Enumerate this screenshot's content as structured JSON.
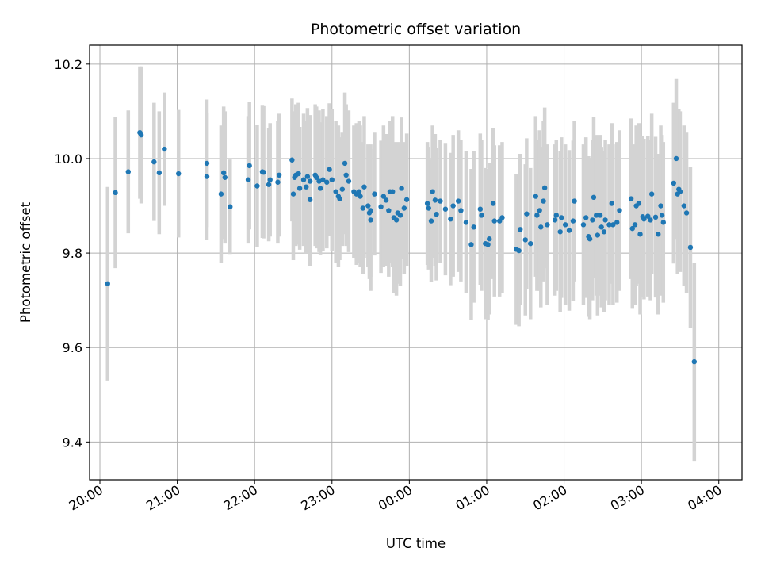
{
  "chart_data": {
    "type": "scatter",
    "title": "Photometric offset variation",
    "xlabel": "UTC time",
    "ylabel": "Photometric offset",
    "x_ticks": [
      "20:00",
      "21:00",
      "22:00",
      "23:00",
      "00:00",
      "01:00",
      "02:00",
      "03:00",
      "04:00"
    ],
    "y_ticks": [
      "9.4",
      "9.6",
      "9.8",
      "10.0",
      "10.2"
    ],
    "xlim": [
      "19:52",
      "04:18"
    ],
    "ylim": [
      9.32,
      10.24
    ],
    "grid": true,
    "colors": {
      "points": "#1f77b4",
      "errorbars": "#d3d3d3",
      "grid": "#b0b0b0"
    },
    "series": [
      {
        "points": [
          [
            "20:06",
            9.735,
            0.205
          ],
          [
            "20:12",
            9.928,
            0.16
          ],
          [
            "20:22",
            9.972,
            0.13
          ],
          [
            "20:31",
            10.055,
            0.14
          ],
          [
            "20:32",
            10.05,
            0.145
          ],
          [
            "20:42",
            9.993,
            0.125
          ],
          [
            "20:46",
            9.97,
            0.13
          ],
          [
            "20:50",
            10.02,
            0.12
          ],
          [
            "21:01",
            9.968,
            0.135
          ],
          [
            "21:23",
            9.99,
            0.135
          ],
          [
            "21:23",
            9.962,
            0.135
          ],
          [
            "21:34",
            9.925,
            0.145
          ],
          [
            "21:36",
            9.97,
            0.14
          ],
          [
            "21:37",
            9.96,
            0.14
          ],
          [
            "21:41",
            9.898,
            0.1
          ],
          [
            "21:55",
            9.955,
            0.135
          ],
          [
            "21:56",
            9.985,
            0.135
          ],
          [
            "22:02",
            9.942,
            0.13
          ],
          [
            "22:06",
            9.972,
            0.14
          ],
          [
            "22:07",
            9.971,
            0.14
          ],
          [
            "22:11",
            9.945,
            0.12
          ],
          [
            "22:12",
            9.955,
            0.12
          ],
          [
            "22:18",
            9.95,
            0.13
          ],
          [
            "22:19",
            9.965,
            0.13
          ],
          [
            "22:29",
            9.997,
            0.13
          ],
          [
            "22:30",
            9.925,
            0.14
          ],
          [
            "22:31",
            9.96,
            0.14
          ],
          [
            "22:32",
            9.965,
            0.15
          ],
          [
            "22:34",
            9.968,
            0.15
          ],
          [
            "22:35",
            9.937,
            0.13
          ],
          [
            "22:38",
            9.955,
            0.14
          ],
          [
            "22:40",
            9.94,
            0.14
          ],
          [
            "22:41",
            9.962,
            0.145
          ],
          [
            "22:43",
            9.913,
            0.14
          ],
          [
            "22:43",
            9.952,
            0.14
          ],
          [
            "22:47",
            9.965,
            0.15
          ],
          [
            "22:48",
            9.96,
            0.15
          ],
          [
            "22:50",
            9.952,
            0.15
          ],
          [
            "22:51",
            9.937,
            0.14
          ],
          [
            "22:53",
            9.955,
            0.15
          ],
          [
            "22:56",
            9.95,
            0.14
          ],
          [
            "22:58",
            9.977,
            0.14
          ],
          [
            "23:00",
            9.955,
            0.15
          ],
          [
            "23:03",
            9.93,
            0.15
          ],
          [
            "23:05",
            9.92,
            0.15
          ],
          [
            "23:06",
            9.915,
            0.13
          ],
          [
            "23:08",
            9.935,
            0.12
          ],
          [
            "23:10",
            9.99,
            0.15
          ],
          [
            "23:11",
            9.965,
            0.15
          ],
          [
            "23:13",
            9.952,
            0.15
          ],
          [
            "23:17",
            9.93,
            0.14
          ],
          [
            "23:19",
            9.925,
            0.15
          ],
          [
            "23:21",
            9.93,
            0.15
          ],
          [
            "23:22",
            9.92,
            0.15
          ],
          [
            "23:24",
            9.895,
            0.14
          ],
          [
            "23:25",
            9.94,
            0.15
          ],
          [
            "23:28",
            9.9,
            0.13
          ],
          [
            "23:29",
            9.885,
            0.14
          ],
          [
            "23:30",
            9.87,
            0.15
          ],
          [
            "23:30",
            9.89,
            0.14
          ],
          [
            "23:33",
            9.925,
            0.13
          ],
          [
            "23:38",
            9.898,
            0.14
          ],
          [
            "23:40",
            9.92,
            0.15
          ],
          [
            "23:42",
            9.912,
            0.14
          ],
          [
            "23:44",
            9.89,
            0.14
          ],
          [
            "23:45",
            9.93,
            0.15
          ],
          [
            "23:47",
            9.93,
            0.16
          ],
          [
            "23:48",
            9.875,
            0.16
          ],
          [
            "23:50",
            9.87,
            0.16
          ],
          [
            "23:51",
            9.885,
            0.15
          ],
          [
            "23:53",
            9.88,
            0.15
          ],
          [
            "23:54",
            9.937,
            0.15
          ],
          [
            "23:56",
            9.895,
            0.14
          ],
          [
            "23:58",
            9.913,
            0.14
          ],
          [
            "00:14",
            9.905,
            0.13
          ],
          [
            "00:15",
            9.895,
            0.13
          ],
          [
            "00:17",
            9.868,
            0.13
          ],
          [
            "00:18",
            9.93,
            0.14
          ],
          [
            "00:20",
            9.912,
            0.14
          ],
          [
            "00:21",
            9.882,
            0.14
          ],
          [
            "00:24",
            9.91,
            0.13
          ],
          [
            "00:28",
            9.893,
            0.14
          ],
          [
            "00:32",
            9.872,
            0.14
          ],
          [
            "00:34",
            9.9,
            0.15
          ],
          [
            "00:38",
            9.91,
            0.15
          ],
          [
            "00:40",
            9.89,
            0.15
          ],
          [
            "00:44",
            9.865,
            0.15
          ],
          [
            "00:48",
            9.818,
            0.16
          ],
          [
            "00:50",
            9.855,
            0.16
          ],
          [
            "00:55",
            9.893,
            0.16
          ],
          [
            "00:56",
            9.88,
            0.16
          ],
          [
            "00:59",
            9.82,
            0.16
          ],
          [
            "01:01",
            9.818,
            0.16
          ],
          [
            "01:02",
            9.83,
            0.16
          ],
          [
            "01:05",
            9.905,
            0.16
          ],
          [
            "01:06",
            9.868,
            0.16
          ],
          [
            "01:10",
            9.868,
            0.16
          ],
          [
            "01:12",
            9.875,
            0.16
          ],
          [
            "01:23",
            9.808,
            0.16
          ],
          [
            "01:25",
            9.805,
            0.16
          ],
          [
            "01:26",
            9.85,
            0.16
          ],
          [
            "01:30",
            9.828,
            0.16
          ],
          [
            "01:31",
            9.883,
            0.16
          ],
          [
            "01:34",
            9.82,
            0.16
          ],
          [
            "01:38",
            9.92,
            0.17
          ],
          [
            "01:39",
            9.88,
            0.16
          ],
          [
            "01:41",
            9.89,
            0.17
          ],
          [
            "01:42",
            9.855,
            0.17
          ],
          [
            "01:44",
            9.91,
            0.17
          ],
          [
            "01:45",
            9.938,
            0.17
          ],
          [
            "01:47",
            9.86,
            0.17
          ],
          [
            "01:53",
            9.87,
            0.16
          ],
          [
            "01:54",
            9.88,
            0.16
          ],
          [
            "01:57",
            9.845,
            0.17
          ],
          [
            "01:58",
            9.875,
            0.17
          ],
          [
            "02:01",
            9.86,
            0.17
          ],
          [
            "02:04",
            9.848,
            0.17
          ],
          [
            "02:07",
            9.868,
            0.17
          ],
          [
            "02:08",
            9.91,
            0.17
          ],
          [
            "02:15",
            9.86,
            0.17
          ],
          [
            "02:17",
            9.875,
            0.17
          ],
          [
            "02:19",
            9.835,
            0.17
          ],
          [
            "02:20",
            9.83,
            0.17
          ],
          [
            "02:22",
            9.87,
            0.17
          ],
          [
            "02:23",
            9.918,
            0.17
          ],
          [
            "02:25",
            9.88,
            0.17
          ],
          [
            "02:26",
            9.838,
            0.17
          ],
          [
            "02:28",
            9.88,
            0.17
          ],
          [
            "02:29",
            9.855,
            0.17
          ],
          [
            "02:31",
            9.845,
            0.17
          ],
          [
            "02:32",
            9.87,
            0.17
          ],
          [
            "02:35",
            9.86,
            0.17
          ],
          [
            "02:37",
            9.905,
            0.17
          ],
          [
            "02:38",
            9.86,
            0.17
          ],
          [
            "02:41",
            9.865,
            0.17
          ],
          [
            "02:43",
            9.89,
            0.17
          ],
          [
            "02:52",
            9.915,
            0.17
          ],
          [
            "02:53",
            9.852,
            0.17
          ],
          [
            "02:55",
            9.86,
            0.17
          ],
          [
            "02:56",
            9.9,
            0.17
          ],
          [
            "02:58",
            9.905,
            0.17
          ],
          [
            "02:59",
            9.84,
            0.17
          ],
          [
            "03:01",
            9.877,
            0.17
          ],
          [
            "03:02",
            9.872,
            0.17
          ],
          [
            "03:05",
            9.878,
            0.17
          ],
          [
            "03:07",
            9.87,
            0.17
          ],
          [
            "03:08",
            9.925,
            0.17
          ],
          [
            "03:11",
            9.876,
            0.17
          ],
          [
            "03:13",
            9.84,
            0.17
          ],
          [
            "03:15",
            9.9,
            0.17
          ],
          [
            "03:16",
            9.88,
            0.17
          ],
          [
            "03:17",
            9.865,
            0.17
          ],
          [
            "03:25",
            9.948,
            0.17
          ],
          [
            "03:28",
            9.925,
            0.17
          ],
          [
            "03:29",
            9.935,
            0.17
          ],
          [
            "03:33",
            9.9,
            0.17
          ],
          [
            "03:35",
            9.885,
            0.17
          ],
          [
            "03:38",
            9.812,
            0.17
          ],
          [
            "03:41",
            9.57,
            0.21
          ],
          [
            "03:27",
            10.0,
            0.17
          ],
          [
            "03:30",
            9.93,
            0.17
          ]
        ]
      }
    ]
  }
}
